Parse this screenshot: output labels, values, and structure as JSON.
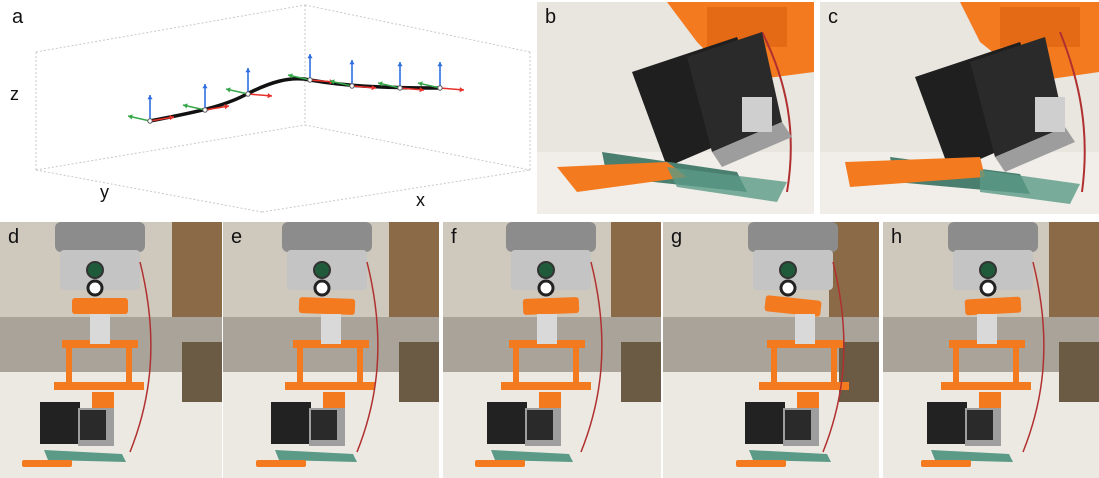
{
  "panels": {
    "a": {
      "label": "a",
      "axes": {
        "z": "z",
        "y": "y",
        "x": "x"
      }
    },
    "b": {
      "label": "b"
    },
    "c": {
      "label": "c"
    },
    "d": {
      "label": "d"
    },
    "e": {
      "label": "e"
    },
    "f": {
      "label": "f"
    },
    "g": {
      "label": "g"
    },
    "h": {
      "label": "h"
    }
  },
  "colors": {
    "path": "#111111",
    "x_arrow": "#e8302a",
    "y_arrow": "#35a84a",
    "z_arrow": "#2f6fe0",
    "robot_orange": "#f47a20",
    "flange_gray": "#9a9a9a",
    "motor_black": "#222222"
  },
  "icons": [
    "coordinate-frame-icon",
    "robot-arm-photo"
  ]
}
